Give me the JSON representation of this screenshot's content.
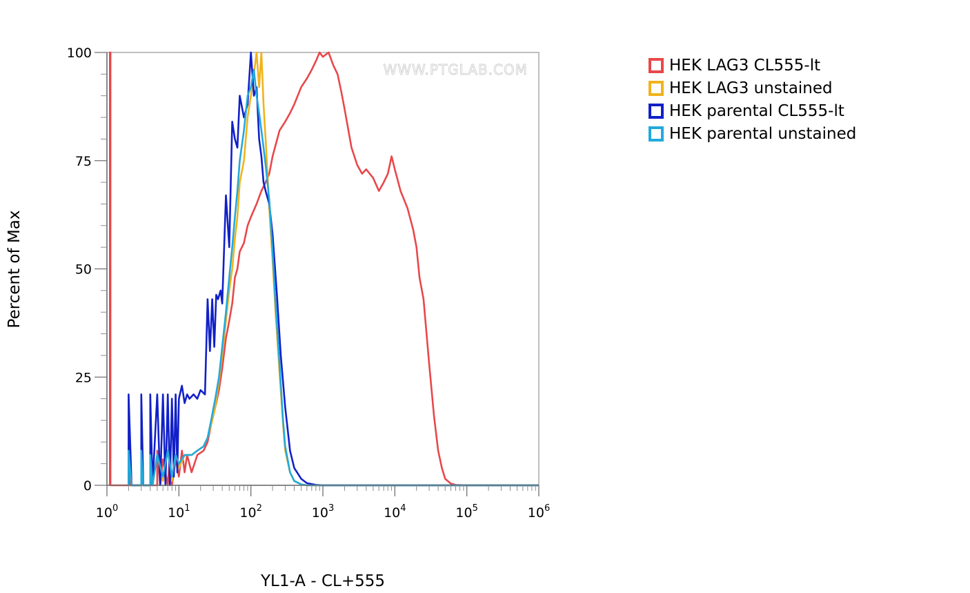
{
  "chart_data": {
    "type": "line",
    "xlabel": "YL1-A - CL+555",
    "ylabel": "Percent of Max",
    "x_scale": "log",
    "xlim": [
      1,
      1000000
    ],
    "ylim": [
      0,
      100
    ],
    "x_ticks": [
      {
        "base": "10",
        "exp": "0"
      },
      {
        "base": "10",
        "exp": "1"
      },
      {
        "base": "10",
        "exp": "2"
      },
      {
        "base": "10",
        "exp": "3"
      },
      {
        "base": "10",
        "exp": "4"
      },
      {
        "base": "10",
        "exp": "5"
      },
      {
        "base": "10",
        "exp": "6"
      }
    ],
    "y_ticks": [
      "0",
      "25",
      "50",
      "75",
      "100"
    ],
    "watermark": "WWW.PTGLAB.COM",
    "legend_position": "right",
    "series": [
      {
        "name": "HEK LAG3 CL555-lt",
        "color": "#e8474a",
        "points": [
          [
            1.1,
            0
          ],
          [
            1.1,
            100
          ],
          [
            1.12,
            100
          ],
          [
            1.12,
            0
          ],
          [
            2,
            0
          ],
          [
            2,
            9
          ],
          [
            2.1,
            0
          ],
          [
            3,
            0
          ],
          [
            3,
            9
          ],
          [
            3.2,
            0
          ],
          [
            4,
            0
          ],
          [
            4,
            8
          ],
          [
            4.2,
            0
          ],
          [
            5,
            0
          ],
          [
            5,
            8
          ],
          [
            5.5,
            0
          ],
          [
            6,
            6
          ],
          [
            7,
            0
          ],
          [
            7.5,
            7
          ],
          [
            8,
            0
          ],
          [
            9,
            6
          ],
          [
            10,
            2
          ],
          [
            11,
            8
          ],
          [
            12,
            3
          ],
          [
            13,
            7
          ],
          [
            15,
            3
          ],
          [
            18,
            7
          ],
          [
            22,
            8
          ],
          [
            25,
            10
          ],
          [
            28,
            14
          ],
          [
            32,
            18
          ],
          [
            36,
            22
          ],
          [
            40,
            27
          ],
          [
            45,
            34
          ],
          [
            50,
            38
          ],
          [
            55,
            42
          ],
          [
            60,
            48
          ],
          [
            65,
            50
          ],
          [
            70,
            54
          ],
          [
            80,
            56
          ],
          [
            90,
            60
          ],
          [
            100,
            62
          ],
          [
            120,
            65
          ],
          [
            140,
            68
          ],
          [
            160,
            70
          ],
          [
            180,
            72
          ],
          [
            200,
            76
          ],
          [
            250,
            82
          ],
          [
            300,
            84
          ],
          [
            350,
            86
          ],
          [
            400,
            88
          ],
          [
            500,
            92
          ],
          [
            600,
            94
          ],
          [
            700,
            96
          ],
          [
            800,
            98
          ],
          [
            900,
            100
          ],
          [
            1000,
            99
          ],
          [
            1200,
            100
          ],
          [
            1400,
            97
          ],
          [
            1600,
            95
          ],
          [
            1800,
            91
          ],
          [
            2000,
            87
          ],
          [
            2500,
            78
          ],
          [
            3000,
            74
          ],
          [
            3500,
            72
          ],
          [
            4000,
            73
          ],
          [
            5000,
            71
          ],
          [
            6000,
            68
          ],
          [
            7000,
            70
          ],
          [
            8000,
            72
          ],
          [
            9000,
            76
          ],
          [
            10000,
            73
          ],
          [
            12000,
            68
          ],
          [
            15000,
            64
          ],
          [
            18000,
            59
          ],
          [
            20000,
            55
          ],
          [
            22000,
            48
          ],
          [
            25000,
            43
          ],
          [
            30000,
            28
          ],
          [
            35000,
            16
          ],
          [
            40000,
            8
          ],
          [
            45000,
            4
          ],
          [
            50000,
            1.5
          ],
          [
            60000,
            0.4
          ],
          [
            70000,
            0.1
          ],
          [
            100000,
            0
          ],
          [
            1000000,
            0
          ]
        ]
      },
      {
        "name": "HEK LAG3 unstained",
        "color": "#f0b31c",
        "points": [
          [
            2,
            0
          ],
          [
            2,
            9
          ],
          [
            2.2,
            0
          ],
          [
            3,
            0
          ],
          [
            3,
            8
          ],
          [
            3.2,
            0
          ],
          [
            4,
            0
          ],
          [
            4,
            8
          ],
          [
            4.3,
            0
          ],
          [
            5,
            7
          ],
          [
            6,
            1
          ],
          [
            7,
            8
          ],
          [
            8,
            1
          ],
          [
            9,
            7
          ],
          [
            10,
            4
          ],
          [
            12,
            7
          ],
          [
            15,
            7
          ],
          [
            18,
            8
          ],
          [
            22,
            9
          ],
          [
            25,
            11
          ],
          [
            28,
            14
          ],
          [
            32,
            18
          ],
          [
            36,
            24
          ],
          [
            40,
            30
          ],
          [
            45,
            38
          ],
          [
            50,
            45
          ],
          [
            55,
            50
          ],
          [
            60,
            57
          ],
          [
            65,
            62
          ],
          [
            70,
            70
          ],
          [
            80,
            75
          ],
          [
            90,
            85
          ],
          [
            100,
            90
          ],
          [
            110,
            95
          ],
          [
            120,
            100
          ],
          [
            130,
            92
          ],
          [
            140,
            100
          ],
          [
            150,
            88
          ],
          [
            160,
            80
          ],
          [
            170,
            72
          ],
          [
            180,
            64
          ],
          [
            200,
            52
          ],
          [
            220,
            40
          ],
          [
            250,
            26
          ],
          [
            280,
            14
          ],
          [
            300,
            8
          ],
          [
            350,
            3
          ],
          [
            400,
            1
          ],
          [
            500,
            0.2
          ],
          [
            600,
            0
          ],
          [
            1000000,
            0
          ]
        ]
      },
      {
        "name": "HEK parental CL555-lt",
        "color": "#1120c8",
        "points": [
          [
            2,
            0
          ],
          [
            2,
            21
          ],
          [
            2.2,
            0
          ],
          [
            3,
            0
          ],
          [
            3,
            21
          ],
          [
            3.2,
            0
          ],
          [
            4,
            0
          ],
          [
            4,
            21
          ],
          [
            4.3,
            0
          ],
          [
            5,
            21
          ],
          [
            5.5,
            0
          ],
          [
            6,
            21
          ],
          [
            6.5,
            0
          ],
          [
            7,
            21
          ],
          [
            7.5,
            0
          ],
          [
            8,
            20
          ],
          [
            8.5,
            2
          ],
          [
            9,
            21
          ],
          [
            9.5,
            3
          ],
          [
            10,
            20
          ],
          [
            11,
            23
          ],
          [
            12,
            19
          ],
          [
            13,
            21
          ],
          [
            14,
            20
          ],
          [
            16,
            21
          ],
          [
            18,
            20
          ],
          [
            20,
            22
          ],
          [
            23,
            21
          ],
          [
            25,
            43
          ],
          [
            27,
            31
          ],
          [
            29,
            43
          ],
          [
            31,
            32
          ],
          [
            33,
            44
          ],
          [
            35,
            43
          ],
          [
            38,
            45
          ],
          [
            40,
            42
          ],
          [
            45,
            67
          ],
          [
            50,
            55
          ],
          [
            55,
            84
          ],
          [
            60,
            80
          ],
          [
            65,
            78
          ],
          [
            70,
            90
          ],
          [
            80,
            85
          ],
          [
            90,
            88
          ],
          [
            100,
            100
          ],
          [
            110,
            90
          ],
          [
            120,
            92
          ],
          [
            130,
            80
          ],
          [
            140,
            76
          ],
          [
            150,
            70
          ],
          [
            160,
            68
          ],
          [
            180,
            65
          ],
          [
            200,
            58
          ],
          [
            230,
            44
          ],
          [
            260,
            30
          ],
          [
            300,
            18
          ],
          [
            350,
            8
          ],
          [
            400,
            4
          ],
          [
            500,
            1.5
          ],
          [
            600,
            0.5
          ],
          [
            800,
            0.1
          ],
          [
            1000,
            0
          ],
          [
            1000000,
            0
          ]
        ]
      },
      {
        "name": "HEK parental unstained",
        "color": "#22a9dc",
        "points": [
          [
            2,
            0
          ],
          [
            2,
            8
          ],
          [
            2.2,
            0
          ],
          [
            3,
            0
          ],
          [
            3,
            8
          ],
          [
            3.2,
            0
          ],
          [
            4,
            0
          ],
          [
            4,
            7
          ],
          [
            4.3,
            0
          ],
          [
            5,
            7
          ],
          [
            6,
            2
          ],
          [
            7,
            8
          ],
          [
            8,
            2
          ],
          [
            9,
            7
          ],
          [
            10,
            5
          ],
          [
            12,
            7
          ],
          [
            15,
            7
          ],
          [
            18,
            8
          ],
          [
            22,
            9
          ],
          [
            25,
            11
          ],
          [
            28,
            15
          ],
          [
            32,
            20
          ],
          [
            36,
            25
          ],
          [
            40,
            32
          ],
          [
            45,
            40
          ],
          [
            50,
            48
          ],
          [
            55,
            55
          ],
          [
            60,
            62
          ],
          [
            65,
            68
          ],
          [
            70,
            75
          ],
          [
            80,
            82
          ],
          [
            90,
            90
          ],
          [
            100,
            92
          ],
          [
            110,
            96
          ],
          [
            120,
            90
          ],
          [
            130,
            86
          ],
          [
            140,
            82
          ],
          [
            150,
            78
          ],
          [
            160,
            74
          ],
          [
            180,
            66
          ],
          [
            200,
            54
          ],
          [
            220,
            42
          ],
          [
            250,
            28
          ],
          [
            280,
            15
          ],
          [
            300,
            9
          ],
          [
            350,
            3
          ],
          [
            400,
            1
          ],
          [
            500,
            0.2
          ],
          [
            600,
            0
          ],
          [
            1000000,
            0
          ]
        ]
      }
    ]
  }
}
